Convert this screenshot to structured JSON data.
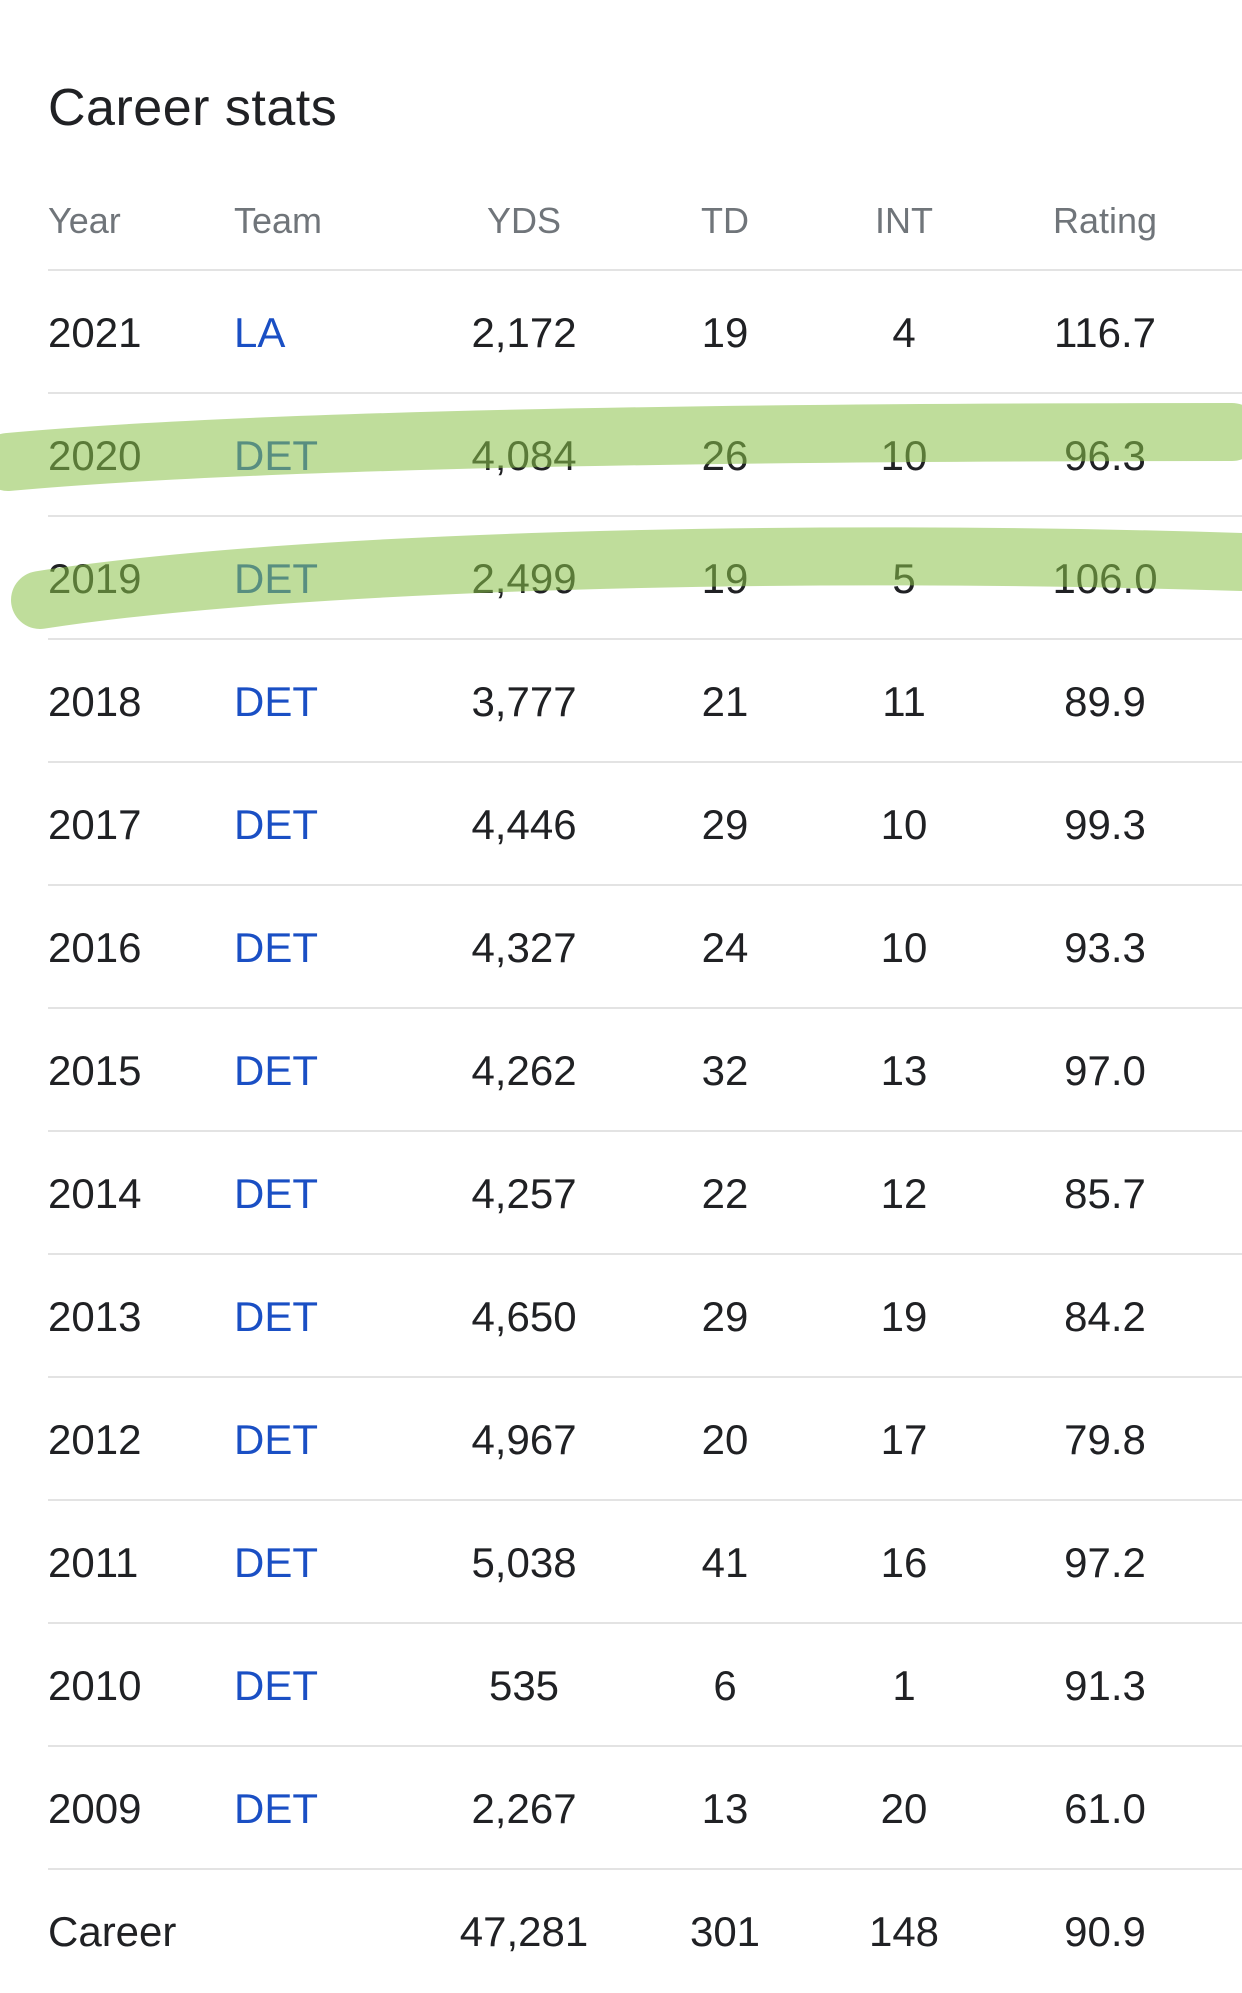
{
  "title": "Career stats",
  "columns": [
    "Year",
    "Team",
    "YDS",
    "TD",
    "INT",
    "Rating"
  ],
  "rows": [
    {
      "year": "2021",
      "team": "LA",
      "yds": "2,172",
      "td": "19",
      "int": "4",
      "rating": "116.7"
    },
    {
      "year": "2020",
      "team": "DET",
      "yds": "4,084",
      "td": "26",
      "int": "10",
      "rating": "96.3"
    },
    {
      "year": "2019",
      "team": "DET",
      "yds": "2,499",
      "td": "19",
      "int": "5",
      "rating": "106.0"
    },
    {
      "year": "2018",
      "team": "DET",
      "yds": "3,777",
      "td": "21",
      "int": "11",
      "rating": "89.9"
    },
    {
      "year": "2017",
      "team": "DET",
      "yds": "4,446",
      "td": "29",
      "int": "10",
      "rating": "99.3"
    },
    {
      "year": "2016",
      "team": "DET",
      "yds": "4,327",
      "td": "24",
      "int": "10",
      "rating": "93.3"
    },
    {
      "year": "2015",
      "team": "DET",
      "yds": "4,262",
      "td": "32",
      "int": "13",
      "rating": "97.0"
    },
    {
      "year": "2014",
      "team": "DET",
      "yds": "4,257",
      "td": "22",
      "int": "12",
      "rating": "85.7"
    },
    {
      "year": "2013",
      "team": "DET",
      "yds": "4,650",
      "td": "29",
      "int": "19",
      "rating": "84.2"
    },
    {
      "year": "2012",
      "team": "DET",
      "yds": "4,967",
      "td": "20",
      "int": "17",
      "rating": "79.8"
    },
    {
      "year": "2011",
      "team": "DET",
      "yds": "5,038",
      "td": "41",
      "int": "16",
      "rating": "97.2"
    },
    {
      "year": "2010",
      "team": "DET",
      "yds": "535",
      "td": "6",
      "int": "1",
      "rating": "91.3"
    },
    {
      "year": "2009",
      "team": "DET",
      "yds": "2,267",
      "td": "13",
      "int": "20",
      "rating": "61.0"
    }
  ],
  "career": {
    "label": "Career",
    "yds": "47,281",
    "td": "301",
    "int": "148",
    "rating": "90.9"
  },
  "highlighted_years": [
    "2020",
    "2019"
  ],
  "colors": {
    "link": "#1a4fc4",
    "highlight": "#9ccc65",
    "header_text": "#70757a",
    "divider": "#e3e3e3"
  }
}
